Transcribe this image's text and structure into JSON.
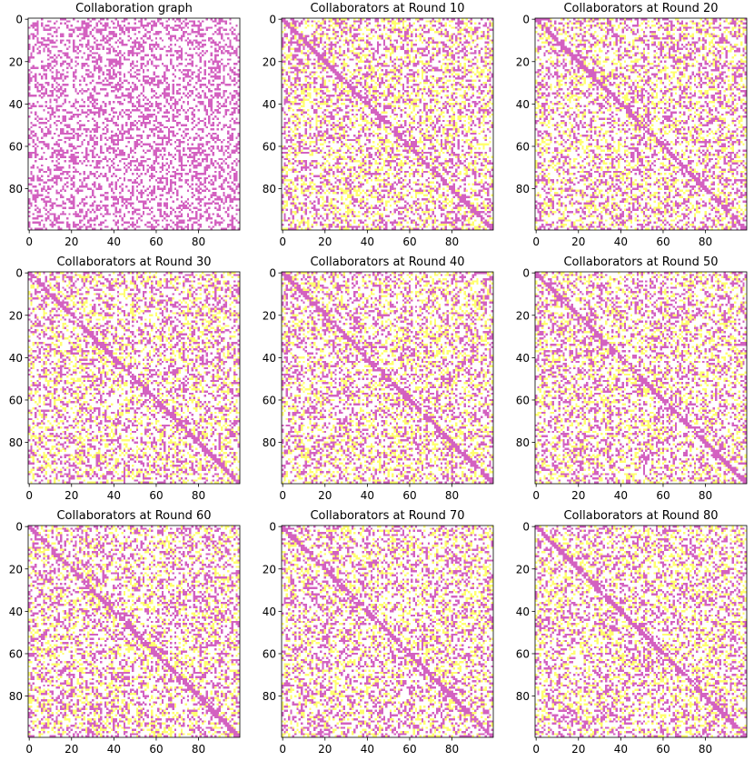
{
  "figure": {
    "grid_size": 100,
    "colors": {
      "background": "#ffffff",
      "edge": "#d361c0",
      "collaborator": "#ffff6e",
      "axis": "#000000"
    }
  },
  "chart_data": [
    {
      "type": "heatmap",
      "title": "Collaboration graph",
      "xlim": [
        0,
        99
      ],
      "ylim": [
        99,
        0
      ],
      "xticks": [
        0,
        20,
        40,
        60,
        80
      ],
      "yticks": [
        0,
        20,
        40,
        60,
        80
      ],
      "shows_collaborators": false,
      "seed": 11
    },
    {
      "type": "heatmap",
      "title": "Collaborators at Round 10",
      "xlim": [
        0,
        99
      ],
      "ylim": [
        99,
        0
      ],
      "xticks": [
        0,
        20,
        40,
        60,
        80
      ],
      "yticks": [
        0,
        20,
        40,
        60,
        80
      ],
      "shows_collaborators": true,
      "seed": 12
    },
    {
      "type": "heatmap",
      "title": "Collaborators at Round 20",
      "xlim": [
        0,
        99
      ],
      "ylim": [
        99,
        0
      ],
      "xticks": [
        0,
        20,
        40,
        60,
        80
      ],
      "yticks": [
        0,
        20,
        40,
        60,
        80
      ],
      "shows_collaborators": true,
      "seed": 13
    },
    {
      "type": "heatmap",
      "title": "Collaborators at Round 30",
      "xlim": [
        0,
        99
      ],
      "ylim": [
        99,
        0
      ],
      "xticks": [
        0,
        20,
        40,
        60,
        80
      ],
      "yticks": [
        0,
        20,
        40,
        60,
        80
      ],
      "shows_collaborators": true,
      "seed": 14
    },
    {
      "type": "heatmap",
      "title": "Collaborators at Round 40",
      "xlim": [
        0,
        99
      ],
      "ylim": [
        99,
        0
      ],
      "xticks": [
        0,
        20,
        40,
        60,
        80
      ],
      "yticks": [
        0,
        20,
        40,
        60,
        80
      ],
      "shows_collaborators": true,
      "seed": 15
    },
    {
      "type": "heatmap",
      "title": "Collaborators at Round 50",
      "xlim": [
        0,
        99
      ],
      "ylim": [
        99,
        0
      ],
      "xticks": [
        0,
        20,
        40,
        60,
        80
      ],
      "yticks": [
        0,
        20,
        40,
        60,
        80
      ],
      "shows_collaborators": true,
      "seed": 16
    },
    {
      "type": "heatmap",
      "title": "Collaborators at Round 60",
      "xlim": [
        0,
        99
      ],
      "ylim": [
        99,
        0
      ],
      "xticks": [
        0,
        20,
        40,
        60,
        80
      ],
      "yticks": [
        0,
        20,
        40,
        60,
        80
      ],
      "shows_collaborators": true,
      "seed": 17
    },
    {
      "type": "heatmap",
      "title": "Collaborators at Round 70",
      "xlim": [
        0,
        99
      ],
      "ylim": [
        99,
        0
      ],
      "xticks": [
        0,
        20,
        40,
        60,
        80
      ],
      "yticks": [
        0,
        20,
        40,
        60,
        80
      ],
      "shows_collaborators": true,
      "seed": 18
    },
    {
      "type": "heatmap",
      "title": "Collaborators at Round 80",
      "xlim": [
        0,
        99
      ],
      "ylim": [
        99,
        0
      ],
      "xticks": [
        0,
        20,
        40,
        60,
        80
      ],
      "yticks": [
        0,
        20,
        40,
        60,
        80
      ],
      "shows_collaborators": true,
      "seed": 19
    }
  ]
}
